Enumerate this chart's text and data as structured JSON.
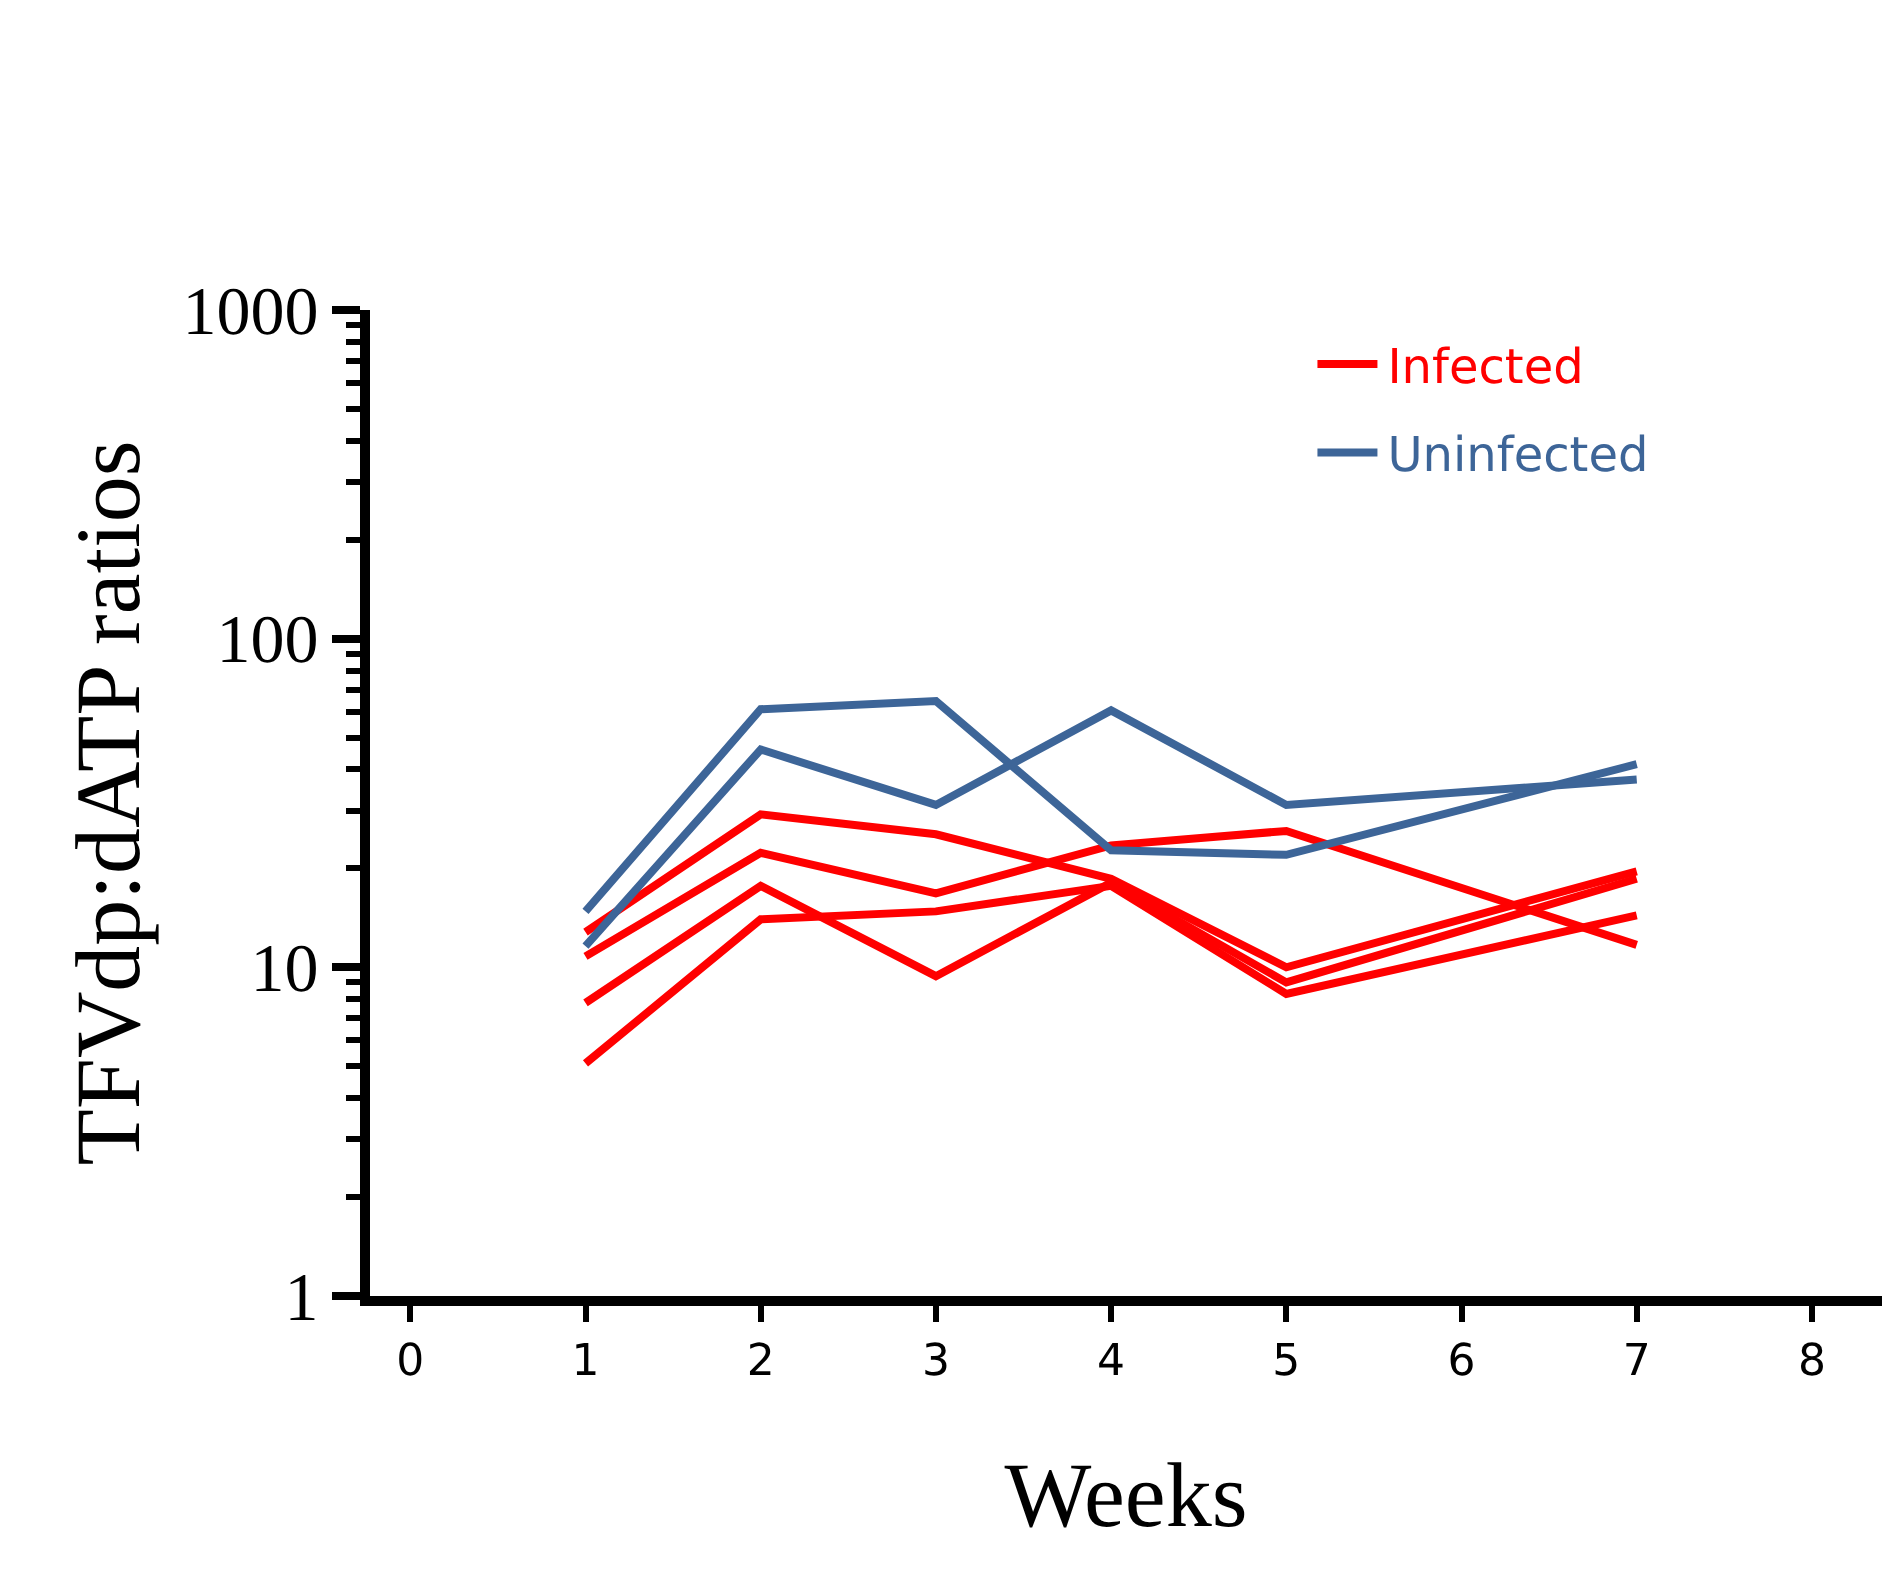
{
  "chart_data": {
    "type": "line",
    "xlabel": "Weeks",
    "ylabel": "TFVdp:dATP ratios",
    "x": [
      1,
      2,
      3,
      4,
      5,
      7
    ],
    "series": [
      {
        "name": "Infected",
        "color": "#ff0000",
        "values": [
          12.8,
          29.2,
          25.4,
          18.6,
          10,
          19.6
        ]
      },
      {
        "color": "#ff0000",
        "values": [
          10.8,
          22.3,
          16.8,
          23.5,
          26,
          11.7
        ]
      },
      {
        "color": "#ff0000",
        "values": [
          7.8,
          17.7,
          9.4,
          18.1,
          9.0,
          18.6
        ]
      },
      {
        "color": "#ff0000",
        "values": [
          5.1,
          14,
          14.8,
          17.7,
          8.3,
          14.4
        ]
      },
      {
        "name": "Uninfected",
        "color": "#3d6598",
        "values": [
          14.8,
          61,
          64.6,
          22.7,
          22.0,
          41.5
        ]
      },
      {
        "color": "#3d6598",
        "values": [
          11.6,
          46,
          31.2,
          60.5,
          31.2,
          37.3
        ]
      }
    ],
    "log": true,
    "ylim": [
      1,
      1000
    ],
    "yticks": [
      1,
      10,
      100,
      1000
    ],
    "xlim": [
      -0.23,
      8.4
    ],
    "xticks": [
      0,
      1,
      2,
      3,
      4,
      5,
      6,
      7,
      8
    ],
    "legend": "top right",
    "marker": "none",
    "line_style": "solid"
  }
}
